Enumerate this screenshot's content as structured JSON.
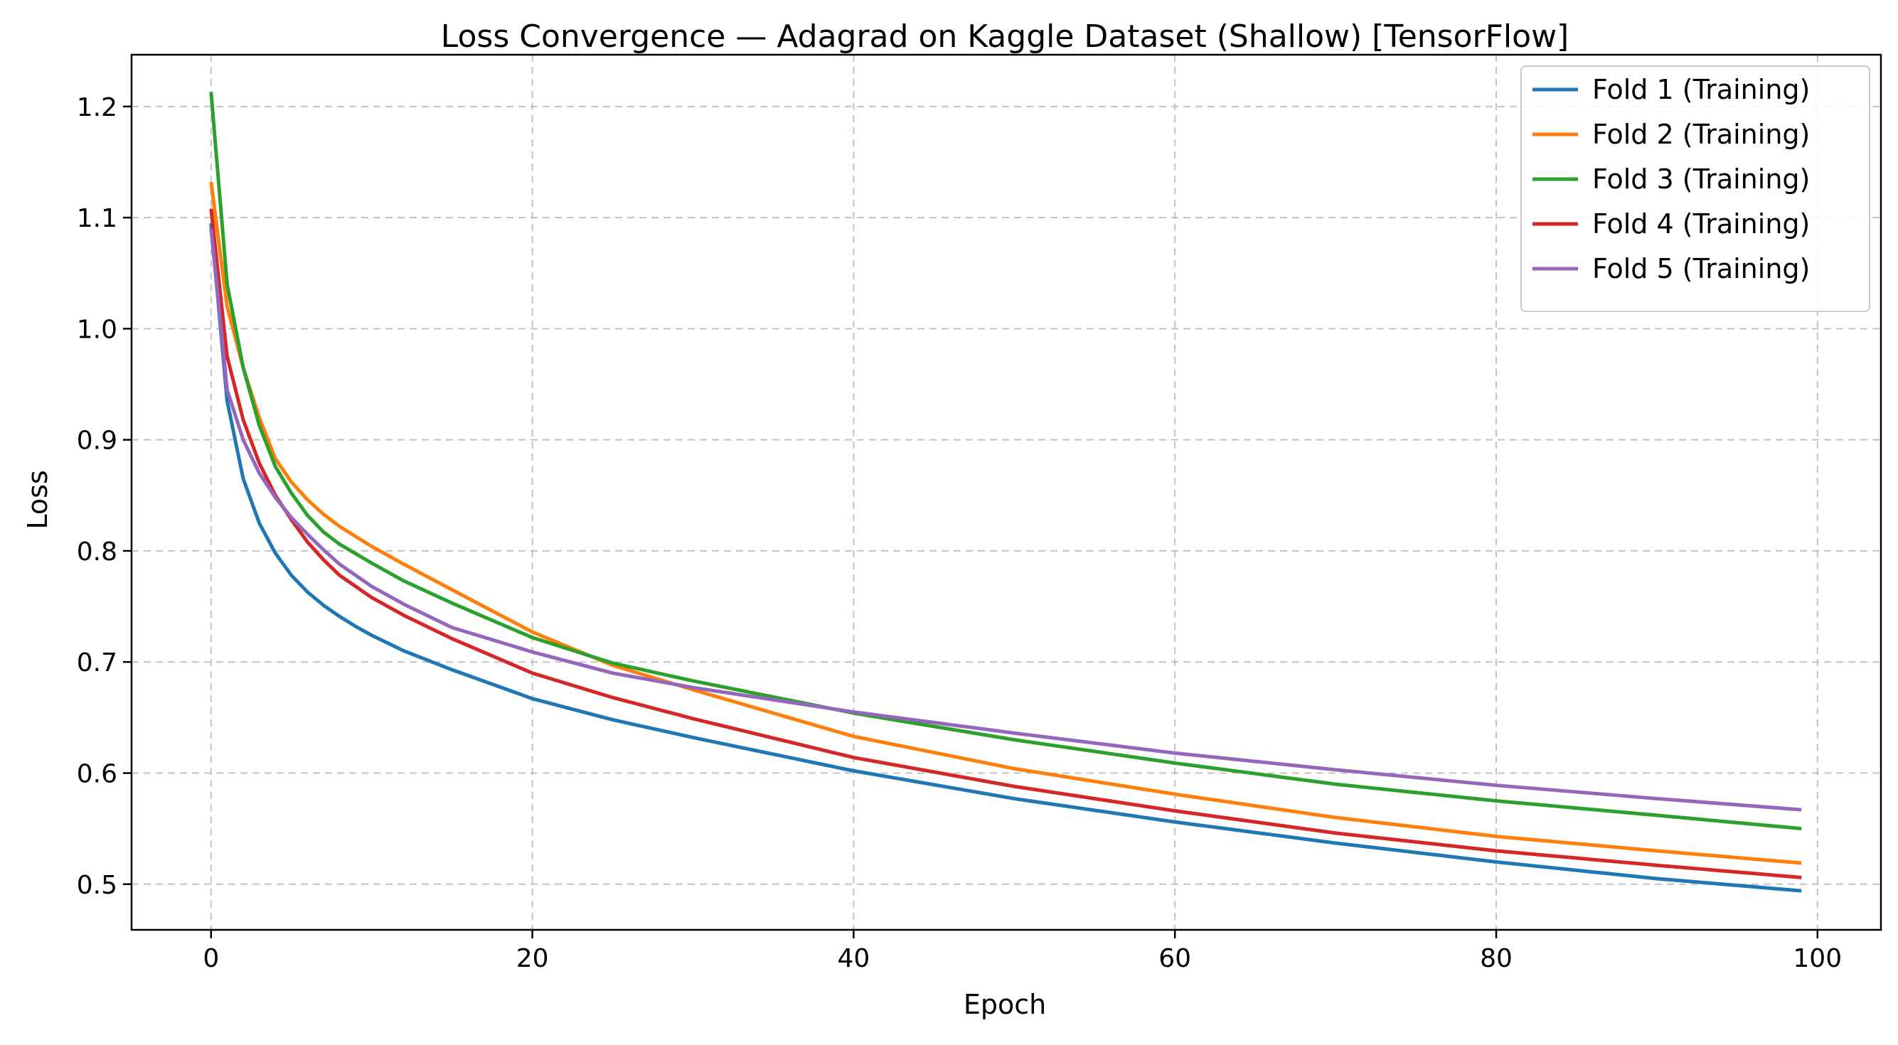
{
  "chart_data": {
    "type": "line",
    "title": "Loss Convergence — Adagrad on Kaggle Dataset (Shallow) [TensorFlow]",
    "xlabel": "Epoch",
    "ylabel": "Loss",
    "xlim": [
      -4.95,
      103.95
    ],
    "ylim": [
      0.4589,
      1.2466
    ],
    "xticks": [
      0,
      20,
      40,
      60,
      80,
      100
    ],
    "yticks": [
      0.5,
      0.6,
      0.7,
      0.8,
      0.9,
      1.0,
      1.1,
      1.2
    ],
    "xtick_labels": [
      "0",
      "20",
      "40",
      "60",
      "80",
      "100"
    ],
    "ytick_labels": [
      "0.5",
      "0.6",
      "0.7",
      "0.8",
      "0.9",
      "1.0",
      "1.1",
      "1.2"
    ],
    "grid": true,
    "legend_position": "top-right",
    "x_start": 0,
    "x_end": 99,
    "series": [
      {
        "name": "Fold 1 (Training)",
        "color": "#1f77b4",
        "knots": [
          [
            0,
            1.095
          ],
          [
            1,
            0.935
          ],
          [
            2,
            0.865
          ],
          [
            3,
            0.825
          ],
          [
            4,
            0.798
          ],
          [
            5,
            0.778
          ],
          [
            6,
            0.763
          ],
          [
            7,
            0.751
          ],
          [
            8,
            0.741
          ],
          [
            9,
            0.732
          ],
          [
            10,
            0.724
          ],
          [
            12,
            0.71
          ],
          [
            15,
            0.693
          ],
          [
            20,
            0.667
          ],
          [
            25,
            0.648
          ],
          [
            30,
            0.632
          ],
          [
            40,
            0.602
          ],
          [
            50,
            0.577
          ],
          [
            60,
            0.556
          ],
          [
            70,
            0.537
          ],
          [
            80,
            0.52
          ],
          [
            90,
            0.505
          ],
          [
            99,
            0.494
          ]
        ]
      },
      {
        "name": "Fold 2 (Training)",
        "color": "#ff7f0e",
        "knots": [
          [
            0,
            1.132
          ],
          [
            1,
            1.02
          ],
          [
            2,
            0.965
          ],
          [
            3,
            0.92
          ],
          [
            4,
            0.883
          ],
          [
            5,
            0.862
          ],
          [
            6,
            0.846
          ],
          [
            7,
            0.833
          ],
          [
            8,
            0.822
          ],
          [
            10,
            0.804
          ],
          [
            12,
            0.788
          ],
          [
            15,
            0.765
          ],
          [
            20,
            0.727
          ],
          [
            25,
            0.697
          ],
          [
            30,
            0.675
          ],
          [
            40,
            0.633
          ],
          [
            50,
            0.604
          ],
          [
            60,
            0.581
          ],
          [
            70,
            0.56
          ],
          [
            80,
            0.543
          ],
          [
            90,
            0.53
          ],
          [
            99,
            0.519
          ]
        ]
      },
      {
        "name": "Fold 3 (Training)",
        "color": "#2ca02c",
        "knots": [
          [
            0,
            1.213
          ],
          [
            1,
            1.04
          ],
          [
            2,
            0.965
          ],
          [
            3,
            0.913
          ],
          [
            4,
            0.876
          ],
          [
            5,
            0.852
          ],
          [
            6,
            0.832
          ],
          [
            7,
            0.817
          ],
          [
            8,
            0.806
          ],
          [
            10,
            0.789
          ],
          [
            12,
            0.773
          ],
          [
            15,
            0.753
          ],
          [
            20,
            0.722
          ],
          [
            25,
            0.699
          ],
          [
            30,
            0.683
          ],
          [
            40,
            0.654
          ],
          [
            50,
            0.63
          ],
          [
            60,
            0.609
          ],
          [
            70,
            0.59
          ],
          [
            80,
            0.575
          ],
          [
            90,
            0.562
          ],
          [
            99,
            0.55
          ]
        ]
      },
      {
        "name": "Fold 4 (Training)",
        "color": "#d62728",
        "knots": [
          [
            0,
            1.108
          ],
          [
            1,
            0.975
          ],
          [
            2,
            0.918
          ],
          [
            3,
            0.879
          ],
          [
            4,
            0.85
          ],
          [
            5,
            0.828
          ],
          [
            6,
            0.808
          ],
          [
            7,
            0.792
          ],
          [
            8,
            0.778
          ],
          [
            10,
            0.758
          ],
          [
            12,
            0.742
          ],
          [
            15,
            0.721
          ],
          [
            20,
            0.69
          ],
          [
            25,
            0.668
          ],
          [
            30,
            0.649
          ],
          [
            40,
            0.614
          ],
          [
            50,
            0.588
          ],
          [
            60,
            0.566
          ],
          [
            70,
            0.546
          ],
          [
            80,
            0.53
          ],
          [
            90,
            0.517
          ],
          [
            99,
            0.506
          ]
        ]
      },
      {
        "name": "Fold 5 (Training)",
        "color": "#9467bd",
        "knots": [
          [
            0,
            1.09
          ],
          [
            1,
            0.945
          ],
          [
            2,
            0.9
          ],
          [
            3,
            0.87
          ],
          [
            4,
            0.848
          ],
          [
            5,
            0.83
          ],
          [
            6,
            0.815
          ],
          [
            7,
            0.801
          ],
          [
            8,
            0.788
          ],
          [
            10,
            0.768
          ],
          [
            12,
            0.752
          ],
          [
            15,
            0.731
          ],
          [
            20,
            0.709
          ],
          [
            25,
            0.69
          ],
          [
            30,
            0.677
          ],
          [
            40,
            0.655
          ],
          [
            50,
            0.636
          ],
          [
            60,
            0.618
          ],
          [
            70,
            0.603
          ],
          [
            80,
            0.589
          ],
          [
            90,
            0.577
          ],
          [
            99,
            0.567
          ]
        ]
      }
    ]
  }
}
